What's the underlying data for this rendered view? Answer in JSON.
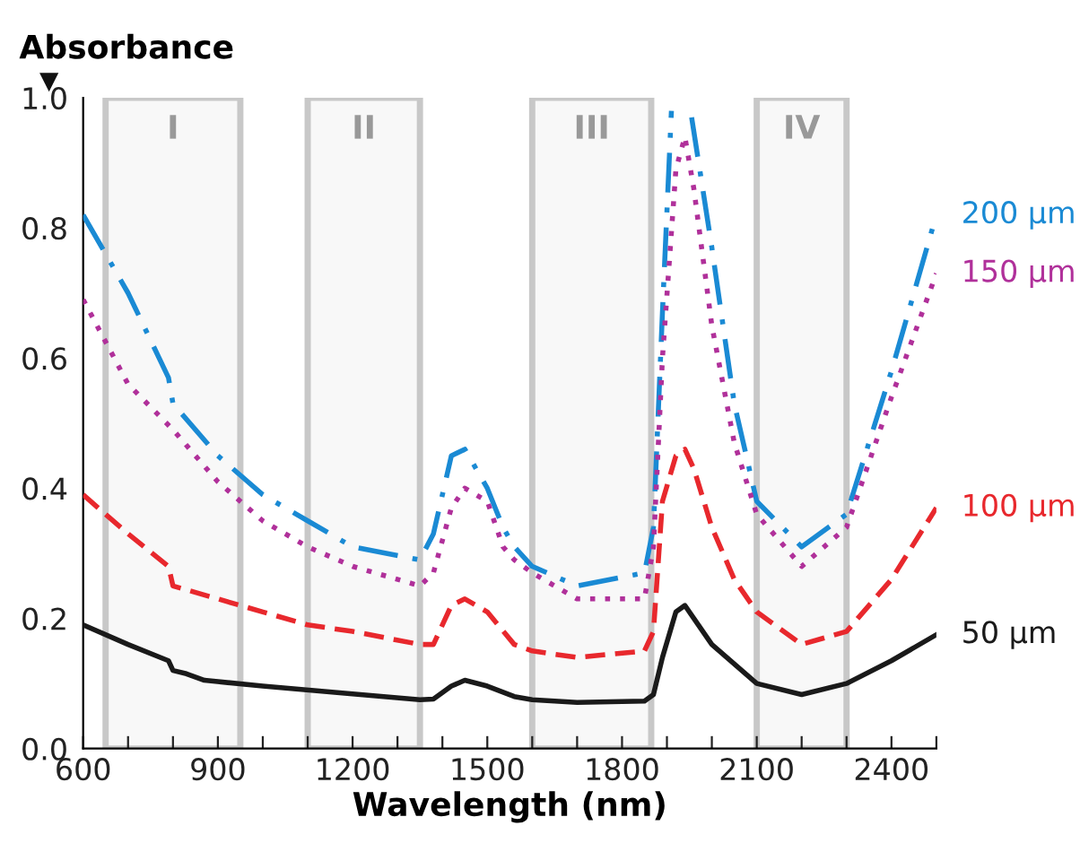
{
  "chart_data": {
    "type": "line",
    "xlabel": "Wavelength (nm)",
    "ylabel": "Absorbance",
    "xlim": [
      600,
      2500
    ],
    "ylim": [
      0,
      1
    ],
    "xticks": [
      600,
      {
        "value": 700,
        "label": null
      },
      {
        "value": 800,
        "label": null
      },
      900,
      {
        "value": 1000,
        "label": null
      },
      {
        "value": 1100,
        "label": null
      },
      1200,
      {
        "value": 1300,
        "label": null
      },
      {
        "value": 1400,
        "label": null
      },
      1500,
      {
        "value": 1600,
        "label": null
      },
      {
        "value": 1700,
        "label": null
      },
      1800,
      {
        "value": 1900,
        "label": null
      },
      {
        "value": 2000,
        "label": null
      },
      2100,
      {
        "value": 2200,
        "label": null
      },
      {
        "value": 2300,
        "label": null
      },
      2400,
      {
        "value": 2500,
        "label": null
      }
    ],
    "yticks": [
      {
        "value": 0,
        "label": "0.0"
      },
      {
        "value": 0.2,
        "label": "0.2"
      },
      {
        "value": 0.4,
        "label": "0.4"
      },
      {
        "value": 0.6,
        "label": "0.6"
      },
      {
        "value": 0.8,
        "label": "0.8"
      },
      {
        "value": 1,
        "label": "1.0"
      }
    ],
    "grid": false,
    "legend": false,
    "marker": "none",
    "bands": [
      {
        "axis": "x",
        "from": 650,
        "to": 950,
        "label": "I",
        "color": "#c8c8c8"
      },
      {
        "axis": "x",
        "from": 1100,
        "to": 1350,
        "label": "II",
        "color": "#c8c8c8"
      },
      {
        "axis": "x",
        "from": 1600,
        "to": 1865,
        "label": "III",
        "color": "#c8c8c8"
      },
      {
        "axis": "x",
        "from": 2100,
        "to": 2300,
        "label": "IV",
        "color": "#c8c8c8"
      }
    ],
    "series": [
      {
        "name": "200 µm",
        "color": "#1a8ad4",
        "line_style": "dashdot",
        "x": [
          600,
          700,
          790,
          800,
          900,
          1000,
          1100,
          1200,
          1350,
          1380,
          1420,
          1450,
          1500,
          1535,
          1560,
          1600,
          1700,
          1850,
          1870,
          1890,
          1910,
          1935,
          1955,
          2000,
          2050,
          2100,
          2200,
          2300,
          2400,
          2500
        ],
        "values": [
          0.82,
          0.7,
          0.57,
          0.53,
          0.45,
          0.39,
          0.35,
          0.31,
          0.29,
          0.33,
          0.45,
          0.46,
          0.4,
          0.34,
          0.31,
          0.28,
          0.25,
          0.27,
          0.34,
          0.67,
          0.98,
          null,
          0.97,
          0.77,
          0.53,
          0.38,
          0.31,
          0.36,
          0.58,
          0.82
        ]
      },
      {
        "name": "150 µm",
        "color": "#b0309a",
        "line_style": "dotted",
        "x": [
          600,
          700,
          800,
          900,
          1000,
          1100,
          1200,
          1350,
          1380,
          1420,
          1450,
          1500,
          1535,
          1560,
          1600,
          1700,
          1850,
          1870,
          1890,
          1920,
          1940,
          1960,
          2000,
          2050,
          2100,
          2200,
          2300,
          2400,
          2500
        ],
        "values": [
          0.69,
          0.56,
          0.49,
          0.41,
          0.35,
          0.31,
          0.28,
          0.25,
          0.27,
          0.37,
          0.4,
          0.38,
          0.31,
          0.29,
          0.27,
          0.23,
          0.23,
          0.31,
          0.6,
          0.89,
          0.94,
          0.86,
          0.65,
          0.47,
          0.36,
          0.28,
          0.34,
          0.54,
          0.73
        ]
      },
      {
        "name": "100 µm",
        "color": "#e8282d",
        "line_style": "dashed",
        "x": [
          600,
          700,
          790,
          800,
          900,
          1000,
          1100,
          1200,
          1350,
          1380,
          1420,
          1450,
          1500,
          1560,
          1600,
          1700,
          1850,
          1870,
          1890,
          1920,
          1940,
          1960,
          2000,
          2050,
          2100,
          2200,
          2300,
          2400,
          2500
        ],
        "values": [
          0.39,
          0.33,
          0.28,
          0.25,
          0.23,
          0.21,
          0.19,
          0.18,
          0.16,
          0.16,
          0.22,
          0.23,
          0.21,
          0.16,
          0.15,
          0.14,
          0.15,
          0.18,
          0.38,
          0.45,
          0.46,
          0.43,
          0.34,
          0.26,
          0.21,
          0.16,
          0.18,
          0.26,
          0.37
        ]
      },
      {
        "name": "50 µm",
        "color": "#1a1a1a",
        "line_style": "solid",
        "x": [
          600,
          700,
          790,
          800,
          830,
          870,
          1000,
          1200,
          1350,
          1380,
          1420,
          1450,
          1500,
          1560,
          1600,
          1700,
          1850,
          1870,
          1890,
          1920,
          1940,
          1960,
          2000,
          2100,
          2200,
          2300,
          2400,
          2500
        ],
        "values": [
          0.19,
          0.16,
          0.135,
          0.12,
          0.115,
          0.105,
          0.096,
          0.084,
          0.075,
          0.076,
          0.096,
          0.105,
          0.096,
          0.08,
          0.075,
          0.071,
          0.073,
          0.083,
          0.14,
          0.21,
          0.22,
          0.2,
          0.16,
          0.1,
          0.083,
          0.1,
          0.135,
          0.175
        ]
      }
    ]
  }
}
